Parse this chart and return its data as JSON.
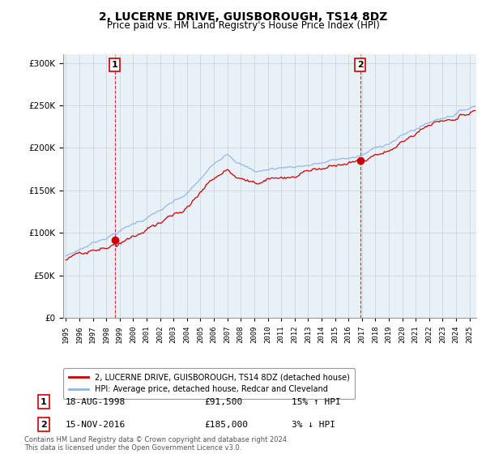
{
  "title": "2, LUCERNE DRIVE, GUISBOROUGH, TS14 8DZ",
  "subtitle": "Price paid vs. HM Land Registry's House Price Index (HPI)",
  "legend_line1": "2, LUCERNE DRIVE, GUISBOROUGH, TS14 8DZ (detached house)",
  "legend_line2": "HPI: Average price, detached house, Redcar and Cleveland",
  "footer": "Contains HM Land Registry data © Crown copyright and database right 2024.\nThis data is licensed under the Open Government Licence v3.0.",
  "sale1_label": "1",
  "sale1_date": "18-AUG-1998",
  "sale1_price": "£91,500",
  "sale1_hpi": "15% ↑ HPI",
  "sale2_label": "2",
  "sale2_date": "15-NOV-2016",
  "sale2_price": "£185,000",
  "sale2_hpi": "3% ↓ HPI",
  "sale1_year": 1998.63,
  "sale1_value": 91500,
  "sale2_year": 2016.88,
  "sale2_value": 185000,
  "hpi_color": "#8ab4e8",
  "price_color": "#CC0000",
  "marker_color": "#CC0000",
  "grid_color": "#CCCCCC",
  "plot_bg_color": "#E8F0F8",
  "background_color": "#FFFFFF",
  "ylim": [
    0,
    310000
  ],
  "xlim_start": 1994.8,
  "xlim_end": 2025.5
}
